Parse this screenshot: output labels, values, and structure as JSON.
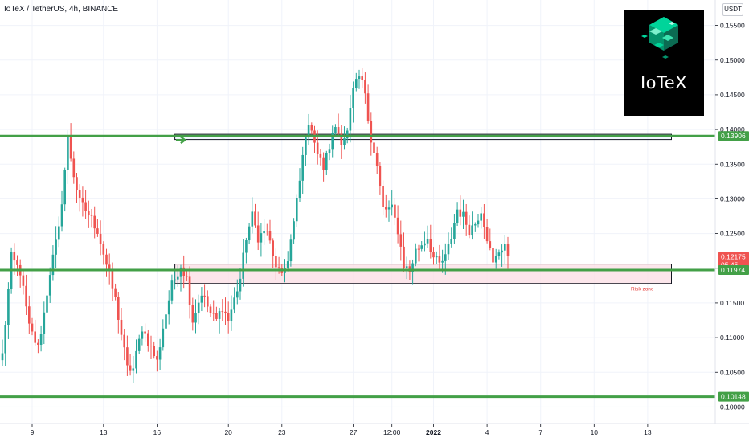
{
  "header": {
    "title": "IoTeX / TetherUS, 4h, BINANCE"
  },
  "currency_chip": "USDT",
  "logo": {
    "text": "IoTeX"
  },
  "zone": {
    "label": "Risk zone"
  },
  "countdown": "05:45",
  "colors": {
    "up": "#26a69a",
    "down": "#ef5350",
    "level_line": "#43a047",
    "zone_fill": "#fbe0e6",
    "last_price": "#ef5350",
    "logo_accent": "#00d49a"
  },
  "chart_data": {
    "type": "candlestick",
    "symbol": "IoTeX / TetherUS",
    "interval": "4h",
    "exchange": "BINANCE",
    "currency": "USDT",
    "ylim": [
      0.0975,
      0.1575
    ],
    "y_ticks": [
      "0.15500",
      "0.15000",
      "0.14500",
      "0.14000",
      "0.13500",
      "0.13000",
      "0.12500",
      "0.12000",
      "0.11500",
      "0.11000",
      "0.10500",
      "0.10000"
    ],
    "x_ticks": [
      {
        "label": "9",
        "bar": 10,
        "bold": false
      },
      {
        "label": "13",
        "bar": 34,
        "bold": false
      },
      {
        "label": "16",
        "bar": 52,
        "bold": false
      },
      {
        "label": "20",
        "bar": 76,
        "bold": false
      },
      {
        "label": "23",
        "bar": 94,
        "bold": false
      },
      {
        "label": "27",
        "bar": 118,
        "bold": false
      },
      {
        "label": "12:00",
        "bar": 131,
        "bold": false
      },
      {
        "label": "2022",
        "bar": 145,
        "bold": true
      },
      {
        "label": "4",
        "bar": 163,
        "bold": false
      },
      {
        "label": "7",
        "bar": 181,
        "bold": false
      },
      {
        "label": "10",
        "bar": 199,
        "bold": false
      },
      {
        "label": "13",
        "bar": 217,
        "bold": false
      }
    ],
    "levels": [
      {
        "price": 0.13906,
        "label": "0.13906"
      },
      {
        "price": 0.11974,
        "label": "0.11974"
      },
      {
        "price": 0.10148,
        "label": "0.10148"
      }
    ],
    "last_price": {
      "value": 0.12175,
      "label": "0.12175"
    },
    "boxes": [
      {
        "name": "resistance-box",
        "from_bar": 58,
        "to_bar": 225,
        "top": 0.1393,
        "bottom": 0.13855
      },
      {
        "name": "risk-zone",
        "from_bar": 58,
        "to_bar": 225,
        "top": 0.1206,
        "bottom": 0.1178
      }
    ],
    "close_anchors": [
      [
        0,
        0.1075
      ],
      [
        3,
        0.1215
      ],
      [
        6,
        0.1195
      ],
      [
        9,
        0.1115
      ],
      [
        12,
        0.1085
      ],
      [
        14,
        0.1135
      ],
      [
        16,
        0.1195
      ],
      [
        19,
        0.1255
      ],
      [
        22,
        0.1385
      ],
      [
        24,
        0.1335
      ],
      [
        26,
        0.1295
      ],
      [
        29,
        0.1278
      ],
      [
        32,
        0.1255
      ],
      [
        35,
        0.1205
      ],
      [
        38,
        0.1155
      ],
      [
        40,
        0.1105
      ],
      [
        42,
        0.1055
      ],
      [
        44,
        0.1055
      ],
      [
        47,
        0.1115
      ],
      [
        50,
        0.1085
      ],
      [
        52,
        0.1065
      ],
      [
        54,
        0.1115
      ],
      [
        57,
        0.1175
      ],
      [
        60,
        0.1205
      ],
      [
        62,
        0.1185
      ],
      [
        64,
        0.1125
      ],
      [
        67,
        0.1165
      ],
      [
        70,
        0.1135
      ],
      [
        72,
        0.1125
      ],
      [
        74,
        0.1145
      ],
      [
        76,
        0.1125
      ],
      [
        78,
        0.1155
      ],
      [
        80,
        0.1185
      ],
      [
        82,
        0.1245
      ],
      [
        84,
        0.1275
      ],
      [
        86,
        0.1245
      ],
      [
        89,
        0.1255
      ],
      [
        91,
        0.1215
      ],
      [
        94,
        0.1185
      ],
      [
        96,
        0.1215
      ],
      [
        98,
        0.1265
      ],
      [
        100,
        0.1325
      ],
      [
        102,
        0.1395
      ],
      [
        104,
        0.1405
      ],
      [
        106,
        0.1365
      ],
      [
        108,
        0.1345
      ],
      [
        110,
        0.1375
      ],
      [
        112,
        0.1405
      ],
      [
        114,
        0.1385
      ],
      [
        116,
        0.1395
      ],
      [
        118,
        0.1455
      ],
      [
        120,
        0.1475
      ],
      [
        122,
        0.1455
      ],
      [
        124,
        0.1385
      ],
      [
        126,
        0.1345
      ],
      [
        128,
        0.1285
      ],
      [
        131,
        0.1285
      ],
      [
        133,
        0.1255
      ],
      [
        135,
        0.1205
      ],
      [
        137,
        0.1195
      ],
      [
        139,
        0.1225
      ],
      [
        141,
        0.1235
      ],
      [
        143,
        0.1245
      ],
      [
        145,
        0.1215
      ],
      [
        147,
        0.1205
      ],
      [
        149,
        0.1215
      ],
      [
        151,
        0.1245
      ],
      [
        153,
        0.1285
      ],
      [
        155,
        0.1275
      ],
      [
        157,
        0.1255
      ],
      [
        159,
        0.1265
      ],
      [
        161,
        0.1285
      ],
      [
        163,
        0.1245
      ],
      [
        165,
        0.1205
      ],
      [
        167,
        0.1225
      ],
      [
        169,
        0.1235
      ],
      [
        170,
        0.1218
      ]
    ]
  }
}
